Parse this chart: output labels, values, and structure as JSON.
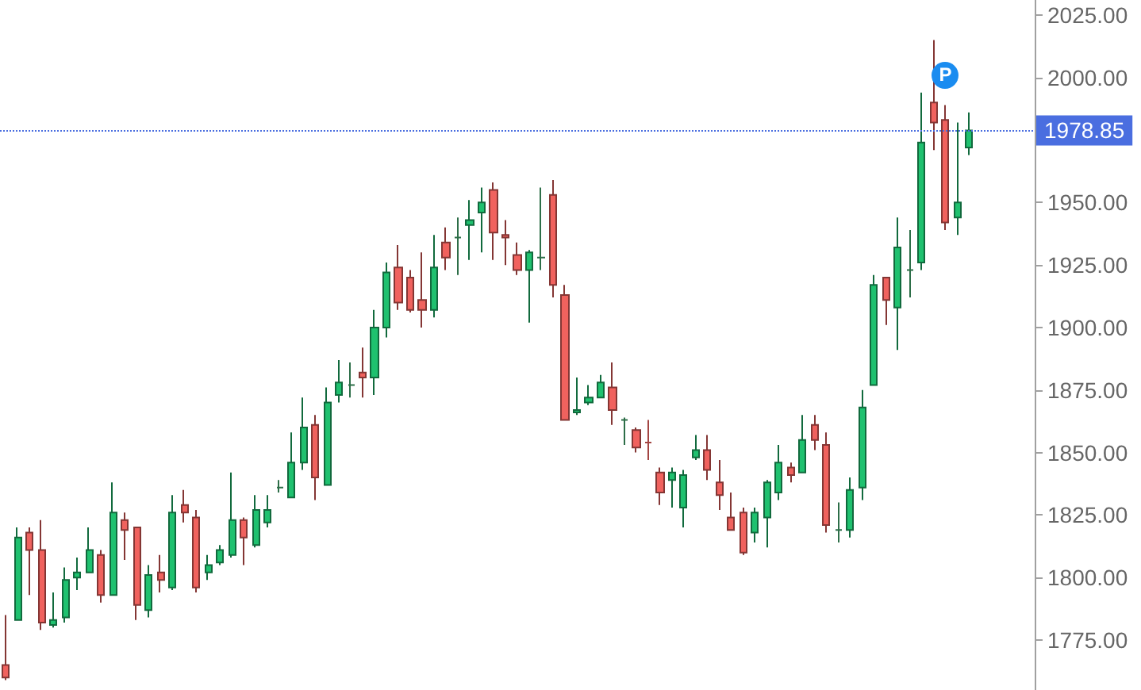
{
  "chart_data": {
    "type": "candlestick",
    "categories": [
      null,
      null,
      null,
      null,
      null,
      null,
      null,
      null,
      null,
      null,
      null,
      null,
      null,
      null,
      null,
      null,
      null,
      null,
      null,
      null,
      null,
      null,
      null,
      null,
      null,
      null,
      null,
      null,
      null,
      null,
      null,
      null,
      null,
      null,
      null,
      null,
      null,
      null,
      null,
      null,
      null,
      null,
      null,
      null,
      null,
      null,
      null,
      null,
      null,
      null,
      null,
      null,
      null,
      null,
      null,
      null,
      null,
      null,
      null,
      null,
      null,
      null,
      null,
      null,
      null,
      null,
      null,
      null,
      null,
      null,
      null,
      null,
      null,
      null,
      null,
      null,
      null,
      null,
      null,
      null,
      null,
      null,
      null,
      null,
      null,
      null,
      null
    ],
    "ohlc": [
      [
        1765,
        1785,
        1759,
        1760
      ],
      [
        1783,
        1820,
        1783,
        1816
      ],
      [
        1818,
        1820,
        1793,
        1811
      ],
      [
        1811,
        1823,
        1779,
        1782
      ],
      [
        1781,
        1794,
        1780,
        1783
      ],
      [
        1784,
        1804,
        1782,
        1799
      ],
      [
        1800,
        1808,
        1795,
        1802
      ],
      [
        1802,
        1820,
        1802,
        1811
      ],
      [
        1809,
        1811,
        1790,
        1793
      ],
      [
        1793,
        1838,
        1793,
        1826
      ],
      [
        1823,
        1826,
        1807,
        1819
      ],
      [
        1820,
        1820,
        1783,
        1789
      ],
      [
        1787,
        1805,
        1784,
        1801
      ],
      [
        1802,
        1809,
        1794,
        1799
      ],
      [
        1796,
        1833,
        1795,
        1826
      ],
      [
        1829,
        1835,
        1822,
        1826
      ],
      [
        1824,
        1827,
        1794,
        1796
      ],
      [
        1802,
        1809,
        1799,
        1805
      ],
      [
        1806,
        1813,
        1805,
        1811
      ],
      [
        1809,
        1842,
        1808,
        1823
      ],
      [
        1823,
        1824,
        1805,
        1816
      ],
      [
        1813,
        1833,
        1812,
        1827
      ],
      [
        1822,
        1833,
        1820,
        1827
      ],
      [
        1836,
        1839,
        1834,
        1836
      ],
      [
        1832,
        1858,
        1832,
        1846
      ],
      [
        1846,
        1872,
        1843,
        1860
      ],
      [
        1861,
        1865,
        1831,
        1840
      ],
      [
        1837,
        1876,
        1837,
        1870
      ],
      [
        1873,
        1887,
        1870,
        1878
      ],
      [
        1877,
        1886,
        1872,
        1877
      ],
      [
        1882,
        1892,
        1872,
        1880
      ],
      [
        1880,
        1907,
        1873,
        1900
      ],
      [
        1900,
        1926,
        1896,
        1922
      ],
      [
        1924,
        1933,
        1907,
        1910
      ],
      [
        1920,
        1923,
        1906,
        1907
      ],
      [
        1911,
        1930,
        1900,
        1907
      ],
      [
        1907,
        1937,
        1904,
        1924
      ],
      [
        1934,
        1940,
        1923,
        1928
      ],
      [
        1936,
        1944,
        1921,
        1936
      ],
      [
        1941,
        1951,
        1927,
        1943
      ],
      [
        1946,
        1956,
        1930,
        1950
      ],
      [
        1955,
        1958,
        1927,
        1938
      ],
      [
        1937,
        1943,
        1925,
        1936
      ],
      [
        1929,
        1934,
        1921,
        1923
      ],
      [
        1923,
        1931,
        1902,
        1930
      ],
      [
        1928,
        1956,
        1923,
        1928
      ],
      [
        1953,
        1959,
        1912,
        1917
      ],
      [
        1913,
        1917,
        1863,
        1863
      ],
      [
        1866,
        1880,
        1865,
        1867
      ],
      [
        1870,
        1877,
        1869,
        1872
      ],
      [
        1872,
        1881,
        1872,
        1878
      ],
      [
        1876,
        1886,
        1861,
        1867
      ],
      [
        1863,
        1864,
        1853,
        1863
      ],
      [
        1859,
        1860,
        1850,
        1852
      ],
      [
        1854,
        1863,
        1847,
        1854
      ],
      [
        1842,
        1844,
        1829,
        1834
      ],
      [
        1839,
        1844,
        1828,
        1842
      ],
      [
        1828,
        1843,
        1820,
        1841
      ],
      [
        1848,
        1857,
        1847,
        1851
      ],
      [
        1851,
        1857,
        1839,
        1843
      ],
      [
        1838,
        1847,
        1827,
        1833
      ],
      [
        1824,
        1834,
        1819,
        1819
      ],
      [
        1826,
        1828,
        1809,
        1810
      ],
      [
        1818,
        1828,
        1814,
        1826
      ],
      [
        1824,
        1839,
        1812,
        1838
      ],
      [
        1834,
        1853,
        1831,
        1846
      ],
      [
        1844,
        1846,
        1838,
        1841
      ],
      [
        1842,
        1865,
        1842,
        1855
      ],
      [
        1861,
        1865,
        1851,
        1855
      ],
      [
        1853,
        1858,
        1818,
        1821
      ],
      [
        1819,
        1830,
        1814,
        1819
      ],
      [
        1819,
        1840,
        1816,
        1835
      ],
      [
        1836,
        1875,
        1831,
        1868
      ],
      [
        1877,
        1921,
        1877,
        1917
      ],
      [
        1920,
        1920,
        1901,
        1911
      ],
      [
        1908,
        1944,
        1891,
        1932
      ],
      [
        1923,
        1939,
        1912,
        1923
      ],
      [
        1926,
        1994,
        1923,
        1974
      ],
      [
        1990,
        2015,
        1971,
        1982
      ],
      [
        1983,
        1989,
        1939,
        1942
      ],
      [
        1944,
        1982,
        1937,
        1950
      ],
      [
        1972,
        1986,
        1969,
        1978.85
      ],
      null,
      null,
      null,
      null,
      null
    ],
    "colors": [
      "#f0625e",
      "#1fc16f",
      "#f0625e",
      "#f0625e",
      "#1fc16f",
      "#1fc16f",
      "#1fc16f",
      "#1fc16f",
      "#f0625e",
      "#1fc16f",
      "#f0625e",
      "#f0625e",
      "#1fc16f",
      "#f0625e",
      "#1fc16f",
      "#f0625e",
      "#f0625e",
      "#1fc16f",
      "#1fc16f",
      "#1fc16f",
      "#f0625e",
      "#1fc16f",
      "#1fc16f",
      "#2d6e48",
      "#1fc16f",
      "#1fc16f",
      "#f0625e",
      "#1fc16f",
      "#1fc16f",
      "#2d6e48",
      "#f0625e",
      "#1fc16f",
      "#1fc16f",
      "#f0625e",
      "#f0625e",
      "#f0625e",
      "#1fc16f",
      "#f0625e",
      "#2d6e48",
      "#1fc16f",
      "#1fc16f",
      "#f0625e",
      "#f0625e",
      "#f0625e",
      "#1fc16f",
      "#2d6e48",
      "#f0625e",
      "#f0625e",
      "#1fc16f",
      "#1fc16f",
      "#1fc16f",
      "#f0625e",
      "#2d6e48",
      "#f0625e",
      "#a34542",
      "#f0625e",
      "#1fc16f",
      "#1fc16f",
      "#1fc16f",
      "#f0625e",
      "#f0625e",
      "#f0625e",
      "#f0625e",
      "#1fc16f",
      "#1fc16f",
      "#1fc16f",
      "#f0625e",
      "#1fc16f",
      "#f0625e",
      "#f0625e",
      "#2d6e48",
      "#1fc16f",
      "#1fc16f",
      "#1fc16f",
      "#f0625e",
      "#1fc16f",
      "#2d6e48",
      "#1fc16f",
      "#f0625e",
      "#f0625e",
      "#1fc16f",
      "#1fc16f",
      null,
      null,
      null,
      null,
      null
    ],
    "ylim": [
      1755,
      2031
    ],
    "yticks": [
      {
        "value": 1775,
        "label": "1775.00"
      },
      {
        "value": 1800,
        "label": "1800.00"
      },
      {
        "value": 1825,
        "label": "1825.00"
      },
      {
        "value": 1850,
        "label": "1850.00"
      },
      {
        "value": 1875,
        "label": "1875.00"
      },
      {
        "value": 1900,
        "label": "1900.00"
      },
      {
        "value": 1925,
        "label": "1925.00"
      },
      {
        "value": 1950,
        "label": "1950.00"
      },
      {
        "value": 1975,
        "label": null
      },
      {
        "value": 2000,
        "label": "2000.00"
      },
      {
        "value": 2025,
        "label": "2025.00"
      }
    ],
    "tick_labels": "y",
    "ref_lines": [
      {
        "axis": "y",
        "value": 1978.85,
        "label": "1978.85",
        "color": "#4a6ee0",
        "line_style": "dotted"
      }
    ],
    "annotations": [
      {
        "text": "P",
        "y": 2001
      }
    ]
  }
}
